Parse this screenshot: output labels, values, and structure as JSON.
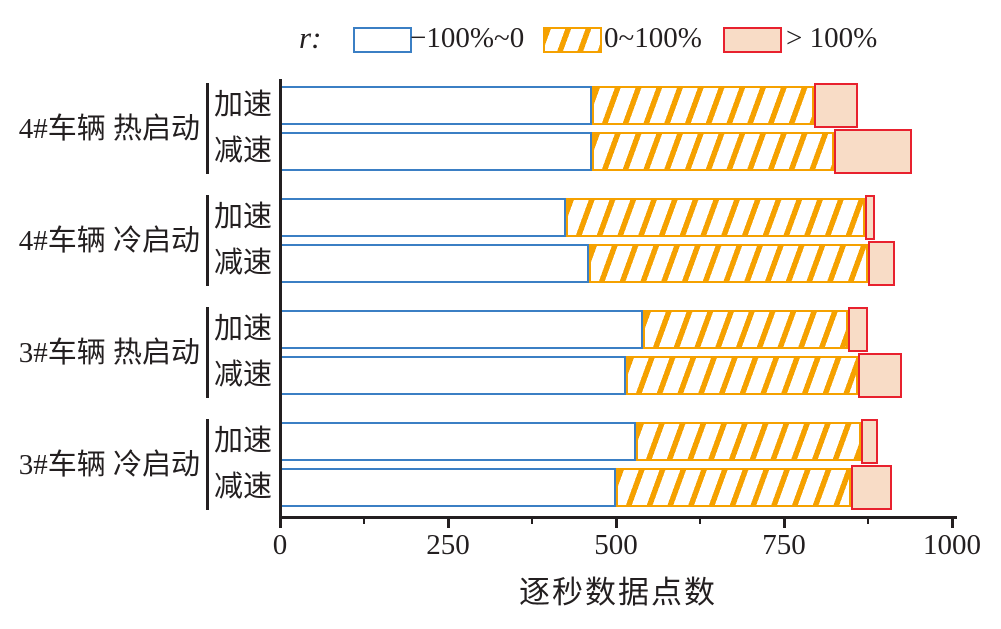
{
  "legend": {
    "prefix": "r:",
    "items": [
      {
        "label": "−100%~0",
        "swatch": "white-box-blue-outline"
      },
      {
        "label": "0~100%",
        "swatch": "orange-diagonal-hatch"
      },
      {
        "label": "> 100%",
        "swatch": "pink-box-red-outline"
      }
    ]
  },
  "chart_data": {
    "type": "bar",
    "orientation": "horizontal-stacked",
    "title": "",
    "xlabel": "逐秒数据点数",
    "ylabel": "",
    "xlim": [
      0,
      1000
    ],
    "x_major_ticks": [
      0,
      250,
      500,
      750,
      1000
    ],
    "x_minor_ticks": [
      125,
      375,
      625,
      875
    ],
    "grid": false,
    "legend_position": "top",
    "legend_title": "r",
    "series_names": [
      "−100%~0",
      "0~100%",
      "> 100%"
    ],
    "groups": [
      {
        "label": "4#车辆 热启动",
        "bars": [
          {
            "label": "加速",
            "segments": [
              465,
              330,
              65
            ],
            "cumulative": [
              465,
              795,
              860
            ]
          },
          {
            "label": "减速",
            "segments": [
              465,
              360,
              115
            ],
            "cumulative": [
              465,
              825,
              940
            ]
          }
        ]
      },
      {
        "label": "4#车辆 冷启动",
        "bars": [
          {
            "label": "加速",
            "segments": [
              425,
              445,
              15
            ],
            "cumulative": [
              425,
              870,
              885
            ]
          },
          {
            "label": "减速",
            "segments": [
              460,
              415,
              40
            ],
            "cumulative": [
              460,
              875,
              915
            ]
          }
        ]
      },
      {
        "label": "3#车辆 热启动",
        "bars": [
          {
            "label": "加速",
            "segments": [
              540,
              305,
              30
            ],
            "cumulative": [
              540,
              845,
              875
            ]
          },
          {
            "label": "减速",
            "segments": [
              515,
              345,
              65
            ],
            "cumulative": [
              515,
              860,
              925
            ]
          }
        ]
      },
      {
        "label": "3#车辆 冷启动",
        "bars": [
          {
            "label": "加速",
            "segments": [
              530,
              335,
              25
            ],
            "cumulative": [
              530,
              865,
              890
            ]
          },
          {
            "label": "减速",
            "segments": [
              500,
              350,
              60
            ],
            "cumulative": [
              500,
              850,
              910
            ]
          }
        ]
      }
    ]
  },
  "colors": {
    "blue": "#3b7fc4",
    "orange": "#f5a100",
    "red": "#e8212e",
    "pink_fill": "#f8dcc6",
    "text": "#231f20"
  }
}
